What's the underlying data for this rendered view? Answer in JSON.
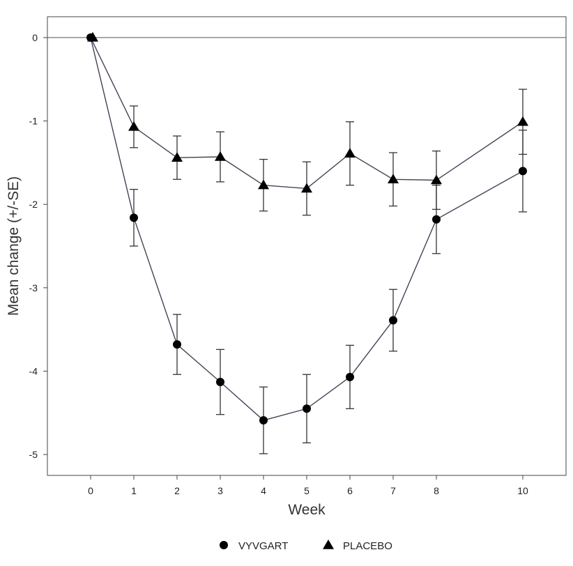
{
  "chart_data": {
    "type": "line",
    "title": "",
    "xlabel": "Week",
    "ylabel": "Mean change (+/-SE)",
    "xlim": [
      -1,
      11
    ],
    "ylim": [
      -5.25,
      0.25
    ],
    "x_ticks": [
      0,
      1,
      2,
      3,
      4,
      5,
      6,
      7,
      8,
      10
    ],
    "x_tick_labels": [
      "0",
      "1",
      "2",
      "3",
      "4",
      "5",
      "6",
      "7",
      "8",
      "10"
    ],
    "y_ticks": [
      0,
      -1,
      -2,
      -3,
      -4,
      -5
    ],
    "y_tick_labels": [
      "0",
      "-1",
      "-2",
      "-3",
      "-4",
      "-5"
    ],
    "reference_line": 0,
    "grid": false,
    "legend_position": "bottom-center",
    "series": [
      {
        "name": "VYVGART",
        "marker": "circle",
        "color": "#000000",
        "line_color": "#4a3f56",
        "x": [
          0,
          1,
          2,
          3,
          4,
          5,
          6,
          7,
          8,
          10
        ],
        "y": [
          0,
          -2.16,
          -3.68,
          -4.13,
          -4.59,
          -4.45,
          -4.07,
          -3.39,
          -2.18,
          -1.6
        ],
        "se": [
          0,
          0.34,
          0.36,
          0.39,
          0.4,
          0.41,
          0.38,
          0.37,
          0.41,
          0.49
        ]
      },
      {
        "name": "PLACEBO",
        "marker": "triangle",
        "color": "#000000",
        "line_color": "#4a3f56",
        "x": [
          0,
          1,
          2,
          3,
          4,
          5,
          6,
          7,
          8,
          10
        ],
        "y": [
          0,
          -1.07,
          -1.44,
          -1.43,
          -1.77,
          -1.81,
          -1.39,
          -1.7,
          -1.71,
          -1.01
        ],
        "se": [
          0,
          0.25,
          0.26,
          0.3,
          0.31,
          0.32,
          0.38,
          0.32,
          0.35,
          0.39
        ]
      }
    ]
  }
}
